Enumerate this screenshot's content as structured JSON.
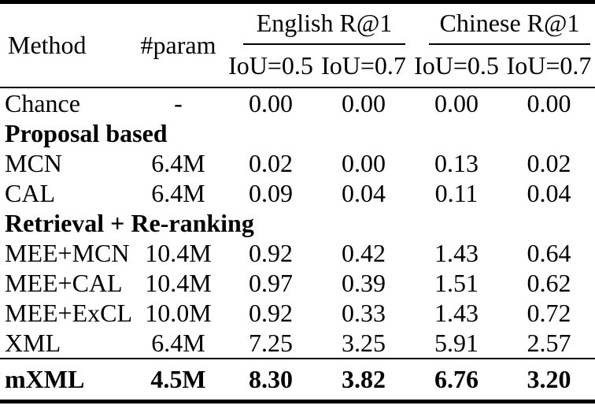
{
  "colors": {
    "text": "#000000",
    "background": "#ffffff",
    "rule": "#000000"
  },
  "table": {
    "header": {
      "method": "Method",
      "param": "#param",
      "groups": [
        "English R@1",
        "Chinese R@1"
      ],
      "sub": [
        "IoU=0.5",
        "IoU=0.7",
        "IoU=0.5",
        "IoU=0.7"
      ]
    },
    "rows": [
      {
        "type": "data",
        "method": "Chance",
        "param": "-",
        "values": [
          "0.00",
          "0.00",
          "0.00",
          "0.00"
        ]
      },
      {
        "type": "section",
        "label": "Proposal based"
      },
      {
        "type": "data",
        "method": "MCN",
        "param": "6.4M",
        "values": [
          "0.02",
          "0.00",
          "0.13",
          "0.02"
        ]
      },
      {
        "type": "data",
        "method": "CAL",
        "param": "6.4M",
        "values": [
          "0.09",
          "0.04",
          "0.11",
          "0.04"
        ]
      },
      {
        "type": "section",
        "label": "Retrieval + Re-ranking"
      },
      {
        "type": "data",
        "method": "MEE+MCN",
        "param": "10.4M",
        "values": [
          "0.92",
          "0.42",
          "1.43",
          "0.64"
        ]
      },
      {
        "type": "data",
        "method": "MEE+CAL",
        "param": "10.4M",
        "values": [
          "0.97",
          "0.39",
          "1.51",
          "0.62"
        ]
      },
      {
        "type": "data",
        "method": "MEE+ExCL",
        "param": "10.0M",
        "values": [
          "0.92",
          "0.33",
          "1.43",
          "0.72"
        ]
      },
      {
        "type": "data",
        "method": "XML",
        "param": "6.4M",
        "values": [
          "7.25",
          "3.25",
          "5.91",
          "2.57"
        ]
      }
    ],
    "footer": {
      "method": "mXML",
      "param": "4.5M",
      "values": [
        "8.30",
        "3.82",
        "6.76",
        "3.20"
      ]
    }
  }
}
